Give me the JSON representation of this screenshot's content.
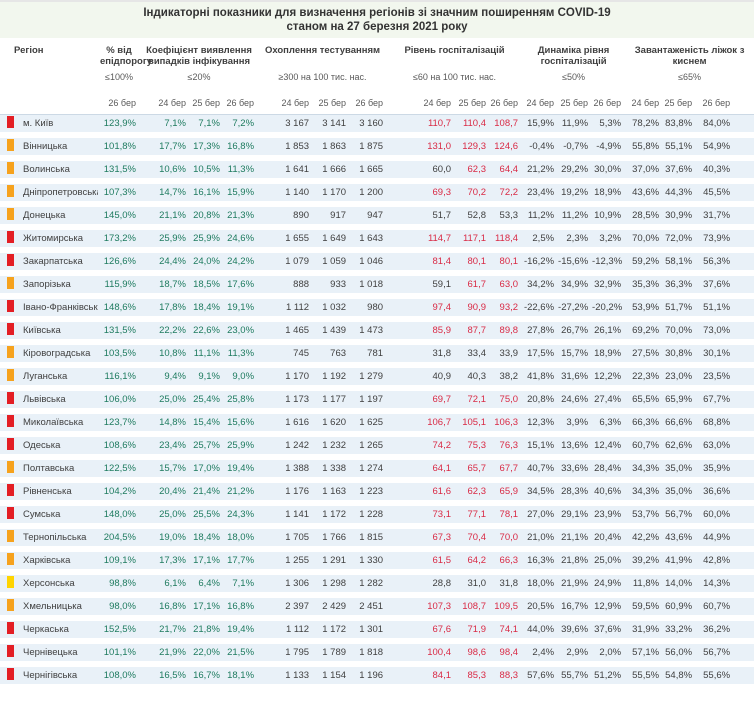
{
  "title": {
    "line1": "Індикаторні показники для визначення регіонів зі значним поширенням COVID-19",
    "line2": "станом на 27 березня 2021 року"
  },
  "colors": {
    "marker_red": "#e31e24",
    "marker_orange": "#f6a21d",
    "marker_yellow": "#ffd400",
    "value_green": "#1e7b5f",
    "value_red": "#d92a45",
    "value_dark": "#404040",
    "row_bg": "#e9f1f8"
  },
  "chart_data": {
    "type": "table",
    "region_header": "Регіон",
    "hosp_red_threshold": 60,
    "columns": [
      {
        "title": "% від епідпорогу",
        "threshold": "≤100%",
        "dates": [
          "26 бер"
        ]
      },
      {
        "title": "Коефіцієнт виявлення випадків інфікування",
        "threshold": "≤20%",
        "dates": [
          "24 бер",
          "25 бер",
          "26 бер"
        ]
      },
      {
        "title": "Охоплення тестуванням",
        "threshold": "≥300 на 100 тис. нас.",
        "dates": [
          "24 бер",
          "25 бер",
          "26 бер"
        ]
      },
      {
        "title": "Рівень госпіталізацій",
        "threshold": "≤60 на 100 тис. нас.",
        "dates": [
          "24 бер",
          "25 бер",
          "26 бер"
        ]
      },
      {
        "title": "Динаміка рівня госпіталізацій",
        "threshold": "≤50%",
        "dates": [
          "24 бер",
          "25 бер",
          "26 бер"
        ]
      },
      {
        "title": "Завантаженість ліжок з киснем",
        "threshold": "≤65%",
        "dates": [
          "24 бер",
          "25 бер",
          "26 бер"
        ]
      }
    ],
    "rows": [
      {
        "region": "м. Київ",
        "marker": "red",
        "epid": "123,9%",
        "coef": [
          "7,1%",
          "7,1%",
          "7,2%"
        ],
        "test": [
          "3 167",
          "3 141",
          "3 160"
        ],
        "hosp": [
          "110,7",
          "110,4",
          "108,7"
        ],
        "dyn": [
          "15,9%",
          "11,9%",
          "5,3%"
        ],
        "load": [
          "78,2%",
          "83,8%",
          "84,0%"
        ]
      },
      {
        "region": "Вінницька",
        "marker": "orange",
        "epid": "101,8%",
        "coef": [
          "17,7%",
          "17,3%",
          "16,8%"
        ],
        "test": [
          "1 853",
          "1 863",
          "1 875"
        ],
        "hosp": [
          "131,0",
          "129,3",
          "124,6"
        ],
        "dyn": [
          "-0,4%",
          "-0,7%",
          "-4,9%"
        ],
        "load": [
          "55,8%",
          "55,1%",
          "54,9%"
        ]
      },
      {
        "region": "Волинська",
        "marker": "orange",
        "epid": "131,5%",
        "coef": [
          "10,6%",
          "10,5%",
          "11,3%"
        ],
        "test": [
          "1 641",
          "1 666",
          "1 665"
        ],
        "hosp": [
          "60,0",
          "62,3",
          "64,4"
        ],
        "dyn": [
          "21,2%",
          "29,2%",
          "30,0%"
        ],
        "load": [
          "37,0%",
          "37,6%",
          "40,3%"
        ]
      },
      {
        "region": "Дніпропетровська",
        "marker": "orange",
        "epid": "107,3%",
        "coef": [
          "14,7%",
          "16,1%",
          "15,9%"
        ],
        "test": [
          "1 140",
          "1 170",
          "1 200"
        ],
        "hosp": [
          "69,3",
          "70,2",
          "72,2"
        ],
        "dyn": [
          "23,4%",
          "19,2%",
          "18,9%"
        ],
        "load": [
          "43,6%",
          "44,3%",
          "45,5%"
        ]
      },
      {
        "region": "Донецька",
        "marker": "orange",
        "epid": "145,0%",
        "coef": [
          "21,1%",
          "20,8%",
          "21,3%"
        ],
        "test": [
          "890",
          "917",
          "947"
        ],
        "hosp": [
          "51,7",
          "52,8",
          "53,3"
        ],
        "dyn": [
          "11,2%",
          "11,2%",
          "10,9%"
        ],
        "load": [
          "28,5%",
          "30,9%",
          "31,7%"
        ]
      },
      {
        "region": "Житомирська",
        "marker": "red",
        "epid": "173,2%",
        "coef": [
          "25,9%",
          "25,9%",
          "24,6%"
        ],
        "test": [
          "1 655",
          "1 649",
          "1 643"
        ],
        "hosp": [
          "114,7",
          "117,1",
          "118,4"
        ],
        "dyn": [
          "2,5%",
          "2,3%",
          "3,2%"
        ],
        "load": [
          "70,0%",
          "72,0%",
          "73,9%"
        ]
      },
      {
        "region": "Закарпатська",
        "marker": "red",
        "epid": "126,6%",
        "coef": [
          "24,4%",
          "24,0%",
          "24,2%"
        ],
        "test": [
          "1 079",
          "1 059",
          "1 046"
        ],
        "hosp": [
          "81,4",
          "80,1",
          "80,1"
        ],
        "dyn": [
          "-16,2%",
          "-15,6%",
          "-12,3%"
        ],
        "load": [
          "59,2%",
          "58,1%",
          "56,3%"
        ]
      },
      {
        "region": "Запорізька",
        "marker": "orange",
        "epid": "115,9%",
        "coef": [
          "18,7%",
          "18,5%",
          "17,6%"
        ],
        "test": [
          "888",
          "933",
          "1 018"
        ],
        "hosp": [
          "59,1",
          "61,7",
          "63,0"
        ],
        "dyn": [
          "34,2%",
          "34,9%",
          "32,9%"
        ],
        "load": [
          "35,3%",
          "36,3%",
          "37,6%"
        ]
      },
      {
        "region": "Івано-Франківська",
        "marker": "red",
        "epid": "148,6%",
        "coef": [
          "17,8%",
          "18,4%",
          "19,1%"
        ],
        "test": [
          "1 112",
          "1 032",
          "980"
        ],
        "hosp": [
          "97,4",
          "90,9",
          "93,2"
        ],
        "dyn": [
          "-22,6%",
          "-27,2%",
          "-20,2%"
        ],
        "load": [
          "53,9%",
          "51,7%",
          "51,1%"
        ]
      },
      {
        "region": "Київська",
        "marker": "red",
        "epid": "131,5%",
        "coef": [
          "22,2%",
          "22,6%",
          "23,0%"
        ],
        "test": [
          "1 465",
          "1 439",
          "1 473"
        ],
        "hosp": [
          "85,9",
          "87,7",
          "89,8"
        ],
        "dyn": [
          "27,8%",
          "26,7%",
          "26,1%"
        ],
        "load": [
          "69,2%",
          "70,0%",
          "73,0%"
        ]
      },
      {
        "region": "Кіровоградська",
        "marker": "orange",
        "epid": "103,5%",
        "coef": [
          "10,8%",
          "11,1%",
          "11,3%"
        ],
        "test": [
          "745",
          "763",
          "781"
        ],
        "hosp": [
          "31,8",
          "33,4",
          "33,9"
        ],
        "dyn": [
          "17,5%",
          "15,7%",
          "18,9%"
        ],
        "load": [
          "27,5%",
          "30,8%",
          "30,1%"
        ]
      },
      {
        "region": "Луганська",
        "marker": "orange",
        "epid": "116,1%",
        "coef": [
          "9,4%",
          "9,1%",
          "9,0%"
        ],
        "test": [
          "1 170",
          "1 192",
          "1 279"
        ],
        "hosp": [
          "40,9",
          "40,3",
          "38,2"
        ],
        "dyn": [
          "41,8%",
          "31,6%",
          "12,2%"
        ],
        "load": [
          "22,3%",
          "23,0%",
          "23,5%"
        ]
      },
      {
        "region": "Львівська",
        "marker": "red",
        "epid": "106,0%",
        "coef": [
          "25,0%",
          "25,4%",
          "25,8%"
        ],
        "test": [
          "1 173",
          "1 177",
          "1 197"
        ],
        "hosp": [
          "69,7",
          "72,1",
          "75,0"
        ],
        "dyn": [
          "20,8%",
          "24,6%",
          "27,4%"
        ],
        "load": [
          "65,5%",
          "65,9%",
          "67,7%"
        ]
      },
      {
        "region": "Миколаївська",
        "marker": "red",
        "epid": "123,7%",
        "coef": [
          "14,8%",
          "15,4%",
          "15,6%"
        ],
        "test": [
          "1 616",
          "1 620",
          "1 625"
        ],
        "hosp": [
          "106,7",
          "105,1",
          "106,3"
        ],
        "dyn": [
          "12,3%",
          "3,9%",
          "6,3%"
        ],
        "load": [
          "66,3%",
          "66,6%",
          "68,8%"
        ]
      },
      {
        "region": "Одеська",
        "marker": "red",
        "epid": "108,6%",
        "coef": [
          "23,4%",
          "25,7%",
          "25,9%"
        ],
        "test": [
          "1 242",
          "1 232",
          "1 265"
        ],
        "hosp": [
          "74,2",
          "75,3",
          "76,3"
        ],
        "dyn": [
          "15,1%",
          "13,6%",
          "12,4%"
        ],
        "load": [
          "60,7%",
          "62,6%",
          "63,0%"
        ]
      },
      {
        "region": "Полтавська",
        "marker": "orange",
        "epid": "122,5%",
        "coef": [
          "15,7%",
          "17,0%",
          "19,4%"
        ],
        "test": [
          "1 388",
          "1 338",
          "1 274"
        ],
        "hosp": [
          "64,1",
          "65,7",
          "67,7"
        ],
        "dyn": [
          "40,7%",
          "33,6%",
          "28,4%"
        ],
        "load": [
          "34,3%",
          "35,0%",
          "35,9%"
        ]
      },
      {
        "region": "Рівненська",
        "marker": "red",
        "epid": "104,2%",
        "coef": [
          "20,4%",
          "21,4%",
          "21,2%"
        ],
        "test": [
          "1 176",
          "1 163",
          "1 223"
        ],
        "hosp": [
          "61,6",
          "62,3",
          "65,9"
        ],
        "dyn": [
          "34,5%",
          "28,3%",
          "40,6%"
        ],
        "load": [
          "34,3%",
          "35,0%",
          "36,6%"
        ]
      },
      {
        "region": "Сумська",
        "marker": "red",
        "epid": "148,0%",
        "coef": [
          "25,0%",
          "25,5%",
          "24,3%"
        ],
        "test": [
          "1 141",
          "1 172",
          "1 228"
        ],
        "hosp": [
          "73,1",
          "77,1",
          "78,1"
        ],
        "dyn": [
          "27,0%",
          "29,1%",
          "23,9%"
        ],
        "load": [
          "53,7%",
          "56,7%",
          "60,0%"
        ]
      },
      {
        "region": "Тернопільська",
        "marker": "orange",
        "epid": "204,5%",
        "coef": [
          "19,0%",
          "18,4%",
          "18,0%"
        ],
        "test": [
          "1 705",
          "1 766",
          "1 815"
        ],
        "hosp": [
          "67,3",
          "70,4",
          "70,0"
        ],
        "dyn": [
          "21,0%",
          "21,1%",
          "20,4%"
        ],
        "load": [
          "42,2%",
          "43,6%",
          "44,9%"
        ]
      },
      {
        "region": "Харківська",
        "marker": "orange",
        "epid": "109,1%",
        "coef": [
          "17,3%",
          "17,1%",
          "17,7%"
        ],
        "test": [
          "1 255",
          "1 291",
          "1 330"
        ],
        "hosp": [
          "61,5",
          "64,2",
          "66,3"
        ],
        "dyn": [
          "16,3%",
          "21,8%",
          "25,0%"
        ],
        "load": [
          "39,2%",
          "41,9%",
          "42,8%"
        ]
      },
      {
        "region": "Херсонська",
        "marker": "yellow",
        "epid": "98,8%",
        "coef": [
          "6,1%",
          "6,4%",
          "7,1%"
        ],
        "test": [
          "1 306",
          "1 298",
          "1 282"
        ],
        "hosp": [
          "28,8",
          "31,0",
          "31,8"
        ],
        "dyn": [
          "18,0%",
          "21,9%",
          "24,9%"
        ],
        "load": [
          "11,8%",
          "14,0%",
          "14,3%"
        ]
      },
      {
        "region": "Хмельницька",
        "marker": "orange",
        "epid": "98,0%",
        "coef": [
          "16,8%",
          "17,1%",
          "16,8%"
        ],
        "test": [
          "2 397",
          "2 429",
          "2 451"
        ],
        "hosp": [
          "107,3",
          "108,7",
          "109,5"
        ],
        "dyn": [
          "20,5%",
          "16,7%",
          "12,9%"
        ],
        "load": [
          "59,5%",
          "60,9%",
          "60,7%"
        ]
      },
      {
        "region": "Черкаська",
        "marker": "red",
        "epid": "152,5%",
        "coef": [
          "21,7%",
          "21,8%",
          "19,4%"
        ],
        "test": [
          "1 112",
          "1 172",
          "1 301"
        ],
        "hosp": [
          "67,6",
          "71,9",
          "74,1"
        ],
        "dyn": [
          "44,0%",
          "39,6%",
          "37,6%"
        ],
        "load": [
          "31,9%",
          "33,2%",
          "36,2%"
        ]
      },
      {
        "region": "Чернівецька",
        "marker": "red",
        "epid": "101,1%",
        "coef": [
          "21,9%",
          "22,0%",
          "21,5%"
        ],
        "test": [
          "1 795",
          "1 789",
          "1 818"
        ],
        "hosp": [
          "100,4",
          "98,6",
          "98,4"
        ],
        "dyn": [
          "2,4%",
          "2,9%",
          "2,0%"
        ],
        "load": [
          "57,1%",
          "56,0%",
          "56,7%"
        ]
      },
      {
        "region": "Чернігівська",
        "marker": "red",
        "epid": "108,0%",
        "coef": [
          "16,5%",
          "16,7%",
          "18,1%"
        ],
        "test": [
          "1 133",
          "1 154",
          "1 196"
        ],
        "hosp": [
          "84,1",
          "85,3",
          "88,3"
        ],
        "dyn": [
          "57,6%",
          "55,7%",
          "51,2%"
        ],
        "load": [
          "55,5%",
          "54,8%",
          "55,6%"
        ]
      }
    ]
  }
}
